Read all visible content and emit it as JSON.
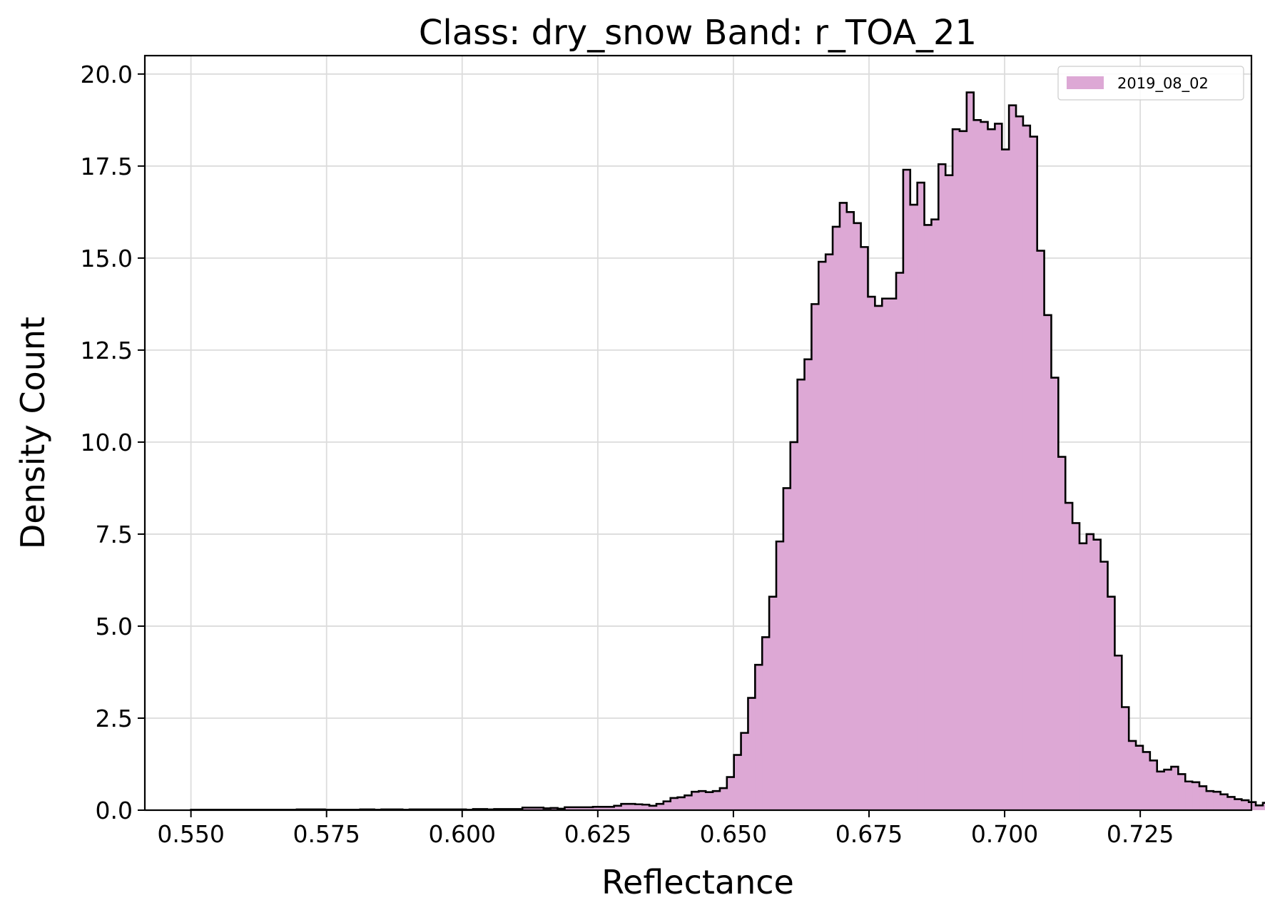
{
  "chart_data": {
    "type": "histogram",
    "title": "Class: dry_snow Band: r_TOA_21",
    "xlabel": "Reflectance",
    "ylabel": "Density Count",
    "xlim": [
      0.5415,
      0.7455
    ],
    "ylim": [
      0.0,
      20.5
    ],
    "grid": true,
    "legend_position": "top-right",
    "x_ticks": [
      "0.550",
      "0.575",
      "0.600",
      "0.625",
      "0.650",
      "0.675",
      "0.700",
      "0.725"
    ],
    "x_tick_values": [
      0.55,
      0.575,
      0.6,
      0.625,
      0.65,
      0.675,
      0.7,
      0.725
    ],
    "y_ticks": [
      "0.0",
      "2.5",
      "5.0",
      "7.5",
      "10.0",
      "12.5",
      "15.0",
      "17.5",
      "20.0"
    ],
    "y_tick_values": [
      0.0,
      2.5,
      5.0,
      7.5,
      10.0,
      12.5,
      15.0,
      17.5,
      20.0
    ],
    "bin_start": 0.55,
    "bin_width": 0.0013,
    "series": [
      {
        "name": "2019_08_02",
        "fill_color": "#dda8d5",
        "edge_color": "#000000",
        "values": [
          0.01,
          0.01,
          0.01,
          0.01,
          0.01,
          0.01,
          0.01,
          0.01,
          0.01,
          0.01,
          0.01,
          0.01,
          0.01,
          0.01,
          0.01,
          0.02,
          0.02,
          0.02,
          0.02,
          0.01,
          0.01,
          0.01,
          0.01,
          0.01,
          0.02,
          0.02,
          0.01,
          0.02,
          0.02,
          0.02,
          0.01,
          0.02,
          0.02,
          0.02,
          0.02,
          0.02,
          0.02,
          0.02,
          0.02,
          0.01,
          0.03,
          0.03,
          0.02,
          0.03,
          0.03,
          0.03,
          0.03,
          0.07,
          0.07,
          0.07,
          0.05,
          0.06,
          0.04,
          0.08,
          0.08,
          0.08,
          0.08,
          0.09,
          0.09,
          0.09,
          0.12,
          0.17,
          0.17,
          0.16,
          0.15,
          0.12,
          0.17,
          0.24,
          0.33,
          0.35,
          0.4,
          0.5,
          0.52,
          0.49,
          0.52,
          0.6,
          0.9,
          1.5,
          2.1,
          3.05,
          3.95,
          4.7,
          5.8,
          7.3,
          8.75,
          10.0,
          11.7,
          12.25,
          13.75,
          14.9,
          15.1,
          15.85,
          16.5,
          16.25,
          15.95,
          15.3,
          13.95,
          13.7,
          13.9,
          13.9,
          14.6,
          17.4,
          16.45,
          17.05,
          15.9,
          16.05,
          17.55,
          17.25,
          18.5,
          18.45,
          19.5,
          18.75,
          18.7,
          18.5,
          18.65,
          17.95,
          19.15,
          18.85,
          18.6,
          18.3,
          15.2,
          13.45,
          11.75,
          9.6,
          8.35,
          7.8,
          7.25,
          7.5,
          7.35,
          6.75,
          5.8,
          4.2,
          2.8,
          1.88,
          1.75,
          1.58,
          1.35,
          1.05,
          1.1,
          1.18,
          0.98,
          0.78,
          0.76,
          0.65,
          0.52,
          0.5,
          0.43,
          0.36,
          0.3,
          0.27,
          0.22,
          0.13,
          0.2,
          0.16,
          0.08,
          0.06,
          0.07,
          0.04,
          0.06,
          0.03,
          0.02,
          0.02,
          0.02,
          0.04,
          0.02,
          0.01,
          0.01,
          0.01,
          0.01,
          0.01,
          0.01,
          0.01
        ]
      }
    ]
  }
}
